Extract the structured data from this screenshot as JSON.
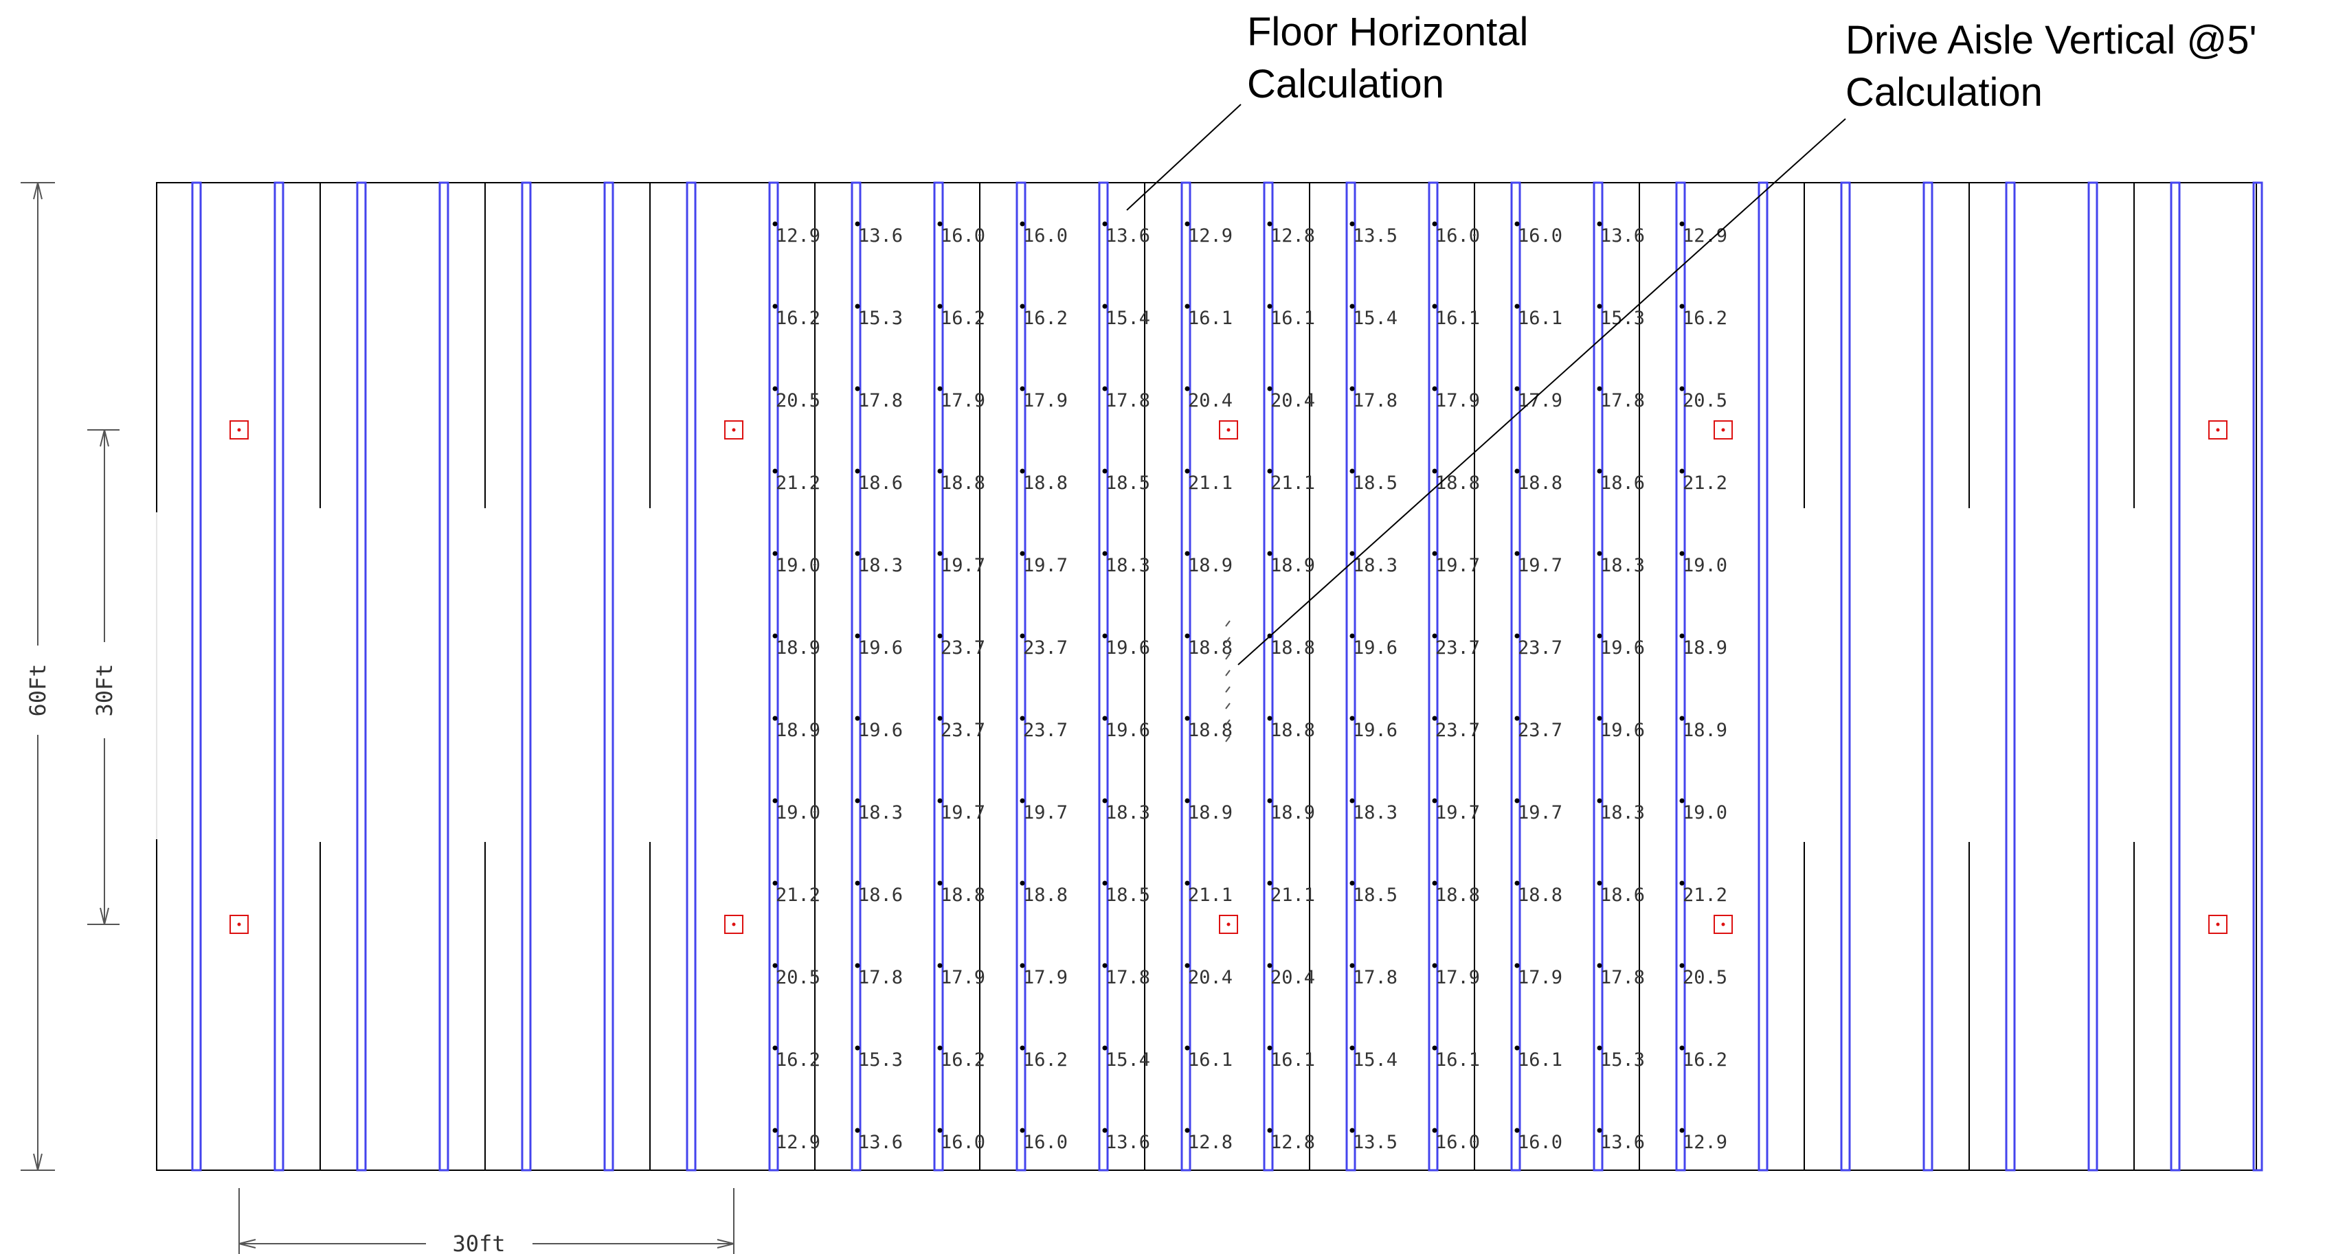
{
  "callouts": {
    "floor_line1": "Floor Horizontal",
    "floor_line2": "Calculation",
    "aisle_line1": "Drive Aisle Vertical @5'",
    "aisle_line2": "Calculation"
  },
  "dimensions": {
    "overall_height": "60Ft",
    "fixture_spacing_vertical": "30Ft",
    "fixture_spacing_horizontal": "30ft"
  },
  "colors": {
    "rack_outline": "#4444ee",
    "fixture": "#dd1111",
    "linework": "#000000",
    "text": "#333333"
  },
  "grid_values": [
    [
      "12.9",
      "13.6",
      "16.0",
      "16.0",
      "13.6",
      "12.9",
      "12.8",
      "13.5",
      "16.0",
      "16.0",
      "13.6",
      "12.9"
    ],
    [
      "16.2",
      "15.3",
      "16.2",
      "16.2",
      "15.4",
      "16.1",
      "16.1",
      "15.4",
      "16.1",
      "16.1",
      "15.3",
      "16.2"
    ],
    [
      "20.5",
      "17.8",
      "17.9",
      "17.9",
      "17.8",
      "20.4",
      "20.4",
      "17.8",
      "17.9",
      "17.9",
      "17.8",
      "20.5"
    ],
    [
      "21.2",
      "18.6",
      "18.8",
      "18.8",
      "18.5",
      "21.1",
      "21.1",
      "18.5",
      "18.8",
      "18.8",
      "18.6",
      "21.2"
    ],
    [
      "19.0",
      "18.3",
      "19.7",
      "19.7",
      "18.3",
      "18.9",
      "18.9",
      "18.3",
      "19.7",
      "19.7",
      "18.3",
      "19.0"
    ],
    [
      "18.9",
      "19.6",
      "23.7",
      "23.7",
      "19.6",
      "18.8",
      "18.8",
      "19.6",
      "23.7",
      "23.7",
      "19.6",
      "18.9"
    ],
    [
      "18.9",
      "19.6",
      "23.7",
      "23.7",
      "19.6",
      "18.8",
      "18.8",
      "19.6",
      "23.7",
      "23.7",
      "19.6",
      "18.9"
    ],
    [
      "19.0",
      "18.3",
      "19.7",
      "19.7",
      "18.3",
      "18.9",
      "18.9",
      "18.3",
      "19.7",
      "19.7",
      "18.3",
      "19.0"
    ],
    [
      "21.2",
      "18.6",
      "18.8",
      "18.8",
      "18.5",
      "21.1",
      "21.1",
      "18.5",
      "18.8",
      "18.8",
      "18.6",
      "21.2"
    ],
    [
      "20.5",
      "17.8",
      "17.9",
      "17.9",
      "17.8",
      "20.4",
      "20.4",
      "17.8",
      "17.9",
      "17.9",
      "17.8",
      "20.5"
    ],
    [
      "16.2",
      "15.3",
      "16.2",
      "16.2",
      "15.4",
      "16.1",
      "16.1",
      "15.4",
      "16.1",
      "16.1",
      "15.3",
      "16.2"
    ],
    [
      "12.9",
      "13.6",
      "16.0",
      "16.0",
      "13.6",
      "12.8",
      "12.8",
      "13.5",
      "16.0",
      "16.0",
      "13.6",
      "12.9"
    ]
  ]
}
